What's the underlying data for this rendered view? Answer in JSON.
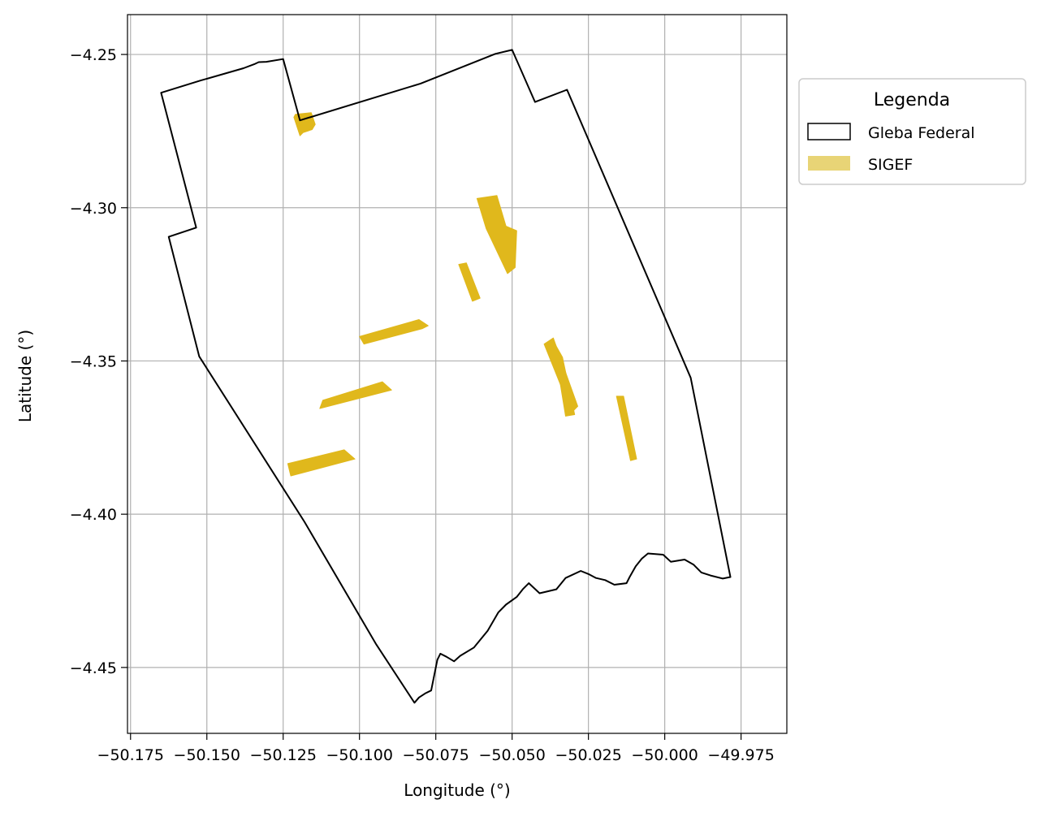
{
  "chart_data": {
    "type": "map",
    "xlabel": "Longitude (°)",
    "ylabel": "Latitude (°)",
    "xlim": [
      -50.176,
      -49.96
    ],
    "ylim": [
      -4.4715,
      -4.237
    ],
    "xticks": [
      -50.175,
      -50.15,
      -50.125,
      -50.1,
      -50.075,
      -50.05,
      -50.025,
      -50.0,
      -49.975
    ],
    "xtick_labels": [
      "−50.175",
      "−50.150",
      "−50.125",
      "−50.100",
      "−50.075",
      "−50.050",
      "−50.025",
      "−50.000",
      "−49.975"
    ],
    "yticks": [
      -4.25,
      -4.3,
      -4.35,
      -4.4,
      -4.45
    ],
    "ytick_labels": [
      "−4.25",
      "−4.30",
      "−4.35",
      "−4.40",
      "−4.45"
    ],
    "grid": true,
    "legend": {
      "title": "Legenda",
      "placement": "outside right, upper",
      "entries": [
        {
          "label": "Gleba Federal",
          "style": "outline",
          "color": "#000000"
        },
        {
          "label": "SIGEF",
          "style": "fill",
          "color": "#e8d476"
        }
      ]
    },
    "series": [
      {
        "name": "Gleba Federal",
        "kind": "polygon",
        "color": "#000000",
        "points": [
          [
            -50.165,
            -4.2625
          ],
          [
            -50.152,
            -4.2585
          ],
          [
            -50.138,
            -4.2545
          ],
          [
            -50.1345,
            -4.2532
          ],
          [
            -50.133,
            -4.2525
          ],
          [
            -50.1305,
            -4.2524
          ],
          [
            -50.125,
            -4.2515
          ],
          [
            -50.1195,
            -4.2715
          ],
          [
            -50.08,
            -4.2595
          ],
          [
            -50.0555,
            -4.2498
          ],
          [
            -50.05,
            -4.2485
          ],
          [
            -50.0425,
            -4.2655
          ],
          [
            -50.032,
            -4.2615
          ],
          [
            -49.9945,
            -4.3485
          ],
          [
            -49.9915,
            -4.3555
          ],
          [
            -49.9785,
            -4.4205
          ],
          [
            -49.981,
            -4.421
          ],
          [
            -49.985,
            -4.42
          ],
          [
            -49.988,
            -4.419
          ],
          [
            -49.9905,
            -4.4165
          ],
          [
            -49.9935,
            -4.4148
          ],
          [
            -49.998,
            -4.4155
          ],
          [
            -50.0005,
            -4.4132
          ],
          [
            -50.0055,
            -4.4128
          ],
          [
            -50.0075,
            -4.4145
          ],
          [
            -50.0095,
            -4.417
          ],
          [
            -50.0115,
            -4.4205
          ],
          [
            -50.0125,
            -4.4225
          ],
          [
            -50.0165,
            -4.423
          ],
          [
            -50.0195,
            -4.4215
          ],
          [
            -50.0225,
            -4.4208
          ],
          [
            -50.025,
            -4.4195
          ],
          [
            -50.0275,
            -4.4185
          ],
          [
            -50.0325,
            -4.4208
          ],
          [
            -50.0355,
            -4.4245
          ],
          [
            -50.041,
            -4.4258
          ],
          [
            -50.0445,
            -4.4225
          ],
          [
            -50.0465,
            -4.4245
          ],
          [
            -50.0485,
            -4.427
          ],
          [
            -50.052,
            -4.4295
          ],
          [
            -50.0545,
            -4.432
          ],
          [
            -50.058,
            -4.438
          ],
          [
            -50.0625,
            -4.4435
          ],
          [
            -50.067,
            -4.4462
          ],
          [
            -50.069,
            -4.448
          ],
          [
            -50.0715,
            -4.4465
          ],
          [
            -50.0735,
            -4.4455
          ],
          [
            -50.0745,
            -4.4475
          ],
          [
            -50.0755,
            -4.4525
          ],
          [
            -50.0765,
            -4.4575
          ],
          [
            -50.0785,
            -4.4585
          ],
          [
            -50.0805,
            -4.4598
          ],
          [
            -50.082,
            -4.4615
          ],
          [
            -50.0945,
            -4.4425
          ],
          [
            -50.118,
            -4.4025
          ],
          [
            -50.1525,
            -4.3485
          ],
          [
            -50.1625,
            -4.3095
          ],
          [
            -50.1535,
            -4.3065
          ],
          [
            -50.165,
            -4.2625
          ]
        ]
      },
      {
        "name": "SIGEF",
        "kind": "polygons",
        "color": "#e0b81c",
        "polygons": [
          [
            [
              -50.121,
              -4.2695
            ],
            [
              -50.1158,
              -4.269
            ],
            [
              -50.1145,
              -4.2728
            ],
            [
              -50.1155,
              -4.2745
            ],
            [
              -50.1185,
              -4.2755
            ],
            [
              -50.1195,
              -4.2765
            ],
            [
              -50.1215,
              -4.2705
            ]
          ],
          [
            [
              -50.0615,
              -4.297
            ],
            [
              -50.055,
              -4.296
            ],
            [
              -50.052,
              -4.306
            ],
            [
              -50.0485,
              -4.3075
            ],
            [
              -50.049,
              -4.3195
            ],
            [
              -50.0515,
              -4.3215
            ],
            [
              -50.0585,
              -4.3068
            ]
          ],
          [
            [
              -50.0675,
              -4.3185
            ],
            [
              -50.065,
              -4.318
            ],
            [
              -50.0605,
              -4.3295
            ],
            [
              -50.063,
              -4.3305
            ]
          ],
          [
            [
              -50.1,
              -4.342
            ],
            [
              -50.0805,
              -4.3365
            ],
            [
              -50.0775,
              -4.3385
            ],
            [
              -50.0795,
              -4.3395
            ],
            [
              -50.0985,
              -4.3445
            ]
          ],
          [
            [
              -50.112,
              -4.3628
            ],
            [
              -50.0925,
              -4.3568
            ],
            [
              -50.0895,
              -4.3595
            ],
            [
              -50.113,
              -4.3655
            ]
          ],
          [
            [
              -50.1235,
              -4.3835
            ],
            [
              -50.105,
              -4.379
            ],
            [
              -50.1015,
              -4.382
            ],
            [
              -50.1225,
              -4.3875
            ]
          ],
          [
            [
              -50.0395,
              -4.3445
            ],
            [
              -50.0365,
              -4.3425
            ],
            [
              -50.0285,
              -4.3648
            ],
            [
              -50.0305,
              -4.3668
            ]
          ],
          [
            [
              -50.0365,
              -4.3435
            ],
            [
              -50.0335,
              -4.3488
            ],
            [
              -50.0295,
              -4.3675
            ],
            [
              -50.0325,
              -4.368
            ]
          ],
          [
            [
              -50.0158,
              -4.3615
            ],
            [
              -50.0135,
              -4.3615
            ],
            [
              -50.0092,
              -4.382
            ],
            [
              -50.0112,
              -4.3825
            ]
          ]
        ]
      }
    ]
  }
}
